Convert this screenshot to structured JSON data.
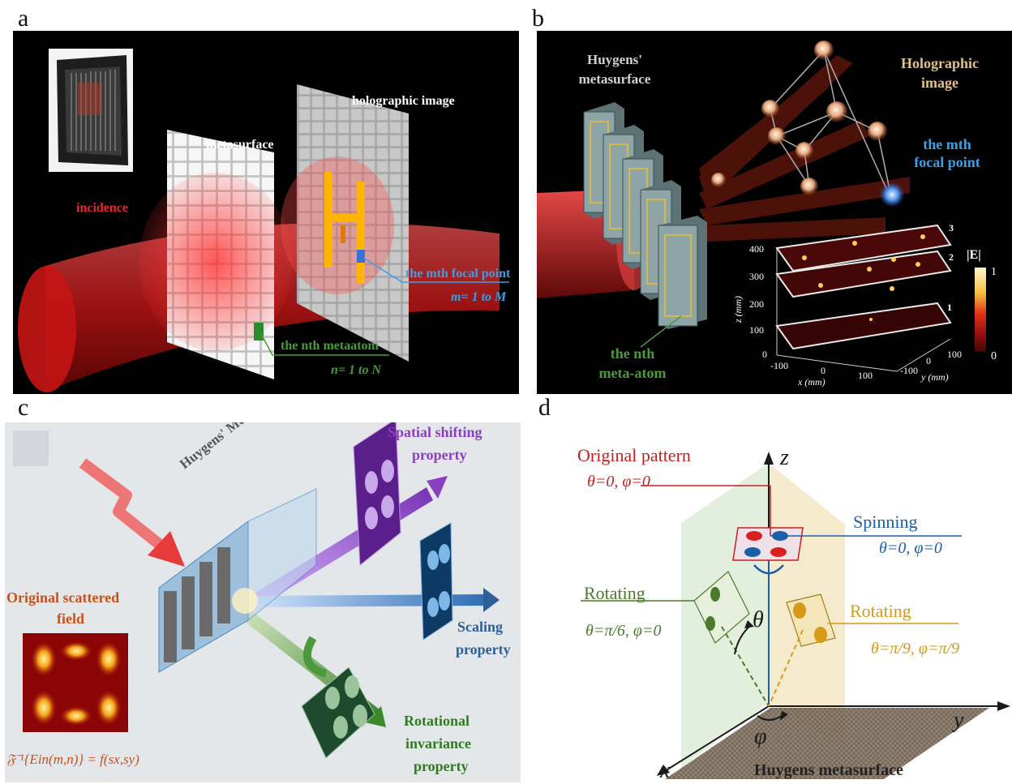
{
  "panels": {
    "a": {
      "letter": "a",
      "holographic_image": "holographic image",
      "metasurface": "metasurface",
      "incidence": "incidence",
      "focal_point": "the mth focal point",
      "focal_range": "m= 1 to M",
      "metaatom": "the nth metaatom",
      "metaatom_range": "n= 1 to N"
    },
    "b": {
      "letter": "b",
      "huygens_line1": "Huygens'",
      "huygens_line2": "metasurface",
      "holo_line1": "Holographic",
      "holo_line2": "image",
      "focal_line1": "the mth",
      "focal_line2": "focal point",
      "atom_line1": "the nth",
      "atom_line2": "meta-atom",
      "colorbar_title": "|E|",
      "colorbar_max": "1",
      "colorbar_min": "0",
      "z_axis_label": "z (mm)",
      "x_axis_label": "x (mm)",
      "y_axis_label": "y (mm)",
      "z_ticks": [
        "400",
        "300",
        "200",
        "100",
        "0"
      ],
      "x_ticks": [
        "-100",
        "0",
        "100"
      ],
      "y_ticks": [
        "-100",
        "0",
        "100"
      ],
      "plane_labels": [
        "3",
        "2",
        "1"
      ]
    },
    "c": {
      "letter": "c",
      "huygens": "Huygens' Metasurface",
      "spatial_line1": "Spatial shifting",
      "spatial_line2": "property",
      "scaling_line1": "Scaling",
      "scaling_line2": "property",
      "rotational_line1": "Rotational",
      "rotational_line2": "invariance",
      "rotational_line3": "property",
      "original_line1": "Original scattered",
      "original_line2": "field",
      "formula": "𝔉⁻¹{Ein(m,n)} = f(sx,sy)"
    },
    "d": {
      "letter": "d",
      "original_pattern": "Original pattern",
      "original_params": "θ=0, φ=0",
      "spinning": "Spinning",
      "spinning_params": "θ=0, φ=0",
      "rotating_left": "Rotating",
      "rotating_left_params": "θ=π/6, φ=0",
      "rotating_right": "Rotating",
      "rotating_right_params": "θ=π/9, φ=π/9",
      "theta": "θ",
      "phi": "φ",
      "axis_x": "x",
      "axis_y": "y",
      "axis_z": "z",
      "base_label": "Huygens metasurface"
    }
  },
  "colors": {
    "red_label": "#e8282a",
    "blue_label": "#3aa0e6",
    "green_label": "#4a9a3c",
    "gold_label": "#e2c188",
    "purple_label": "#8a3fc0",
    "steel_blue": "#2f5f98",
    "orange_text": "#c8501a",
    "d_red": "#c81e1e",
    "d_blue": "#1a5fa8",
    "d_green": "#4a7a2c",
    "d_gold": "#d49a18"
  }
}
